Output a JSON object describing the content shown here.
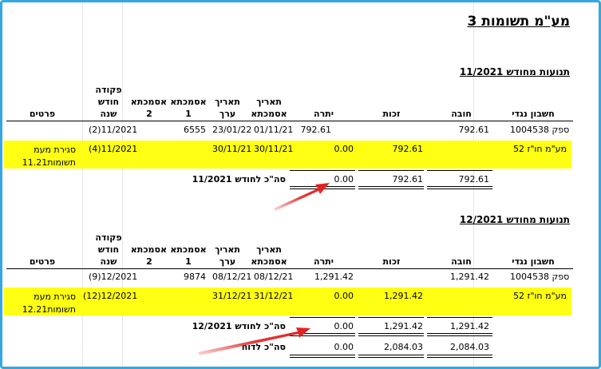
{
  "title": "מע\"מ תשומות  3",
  "columns": {
    "account": "חשבון נגדי",
    "debit": "חובה",
    "credit": "זכות",
    "balance": "יתרה",
    "ref_date": "תאריך אסמכתא",
    "value_date": "תאריך ערך",
    "ref1": "אסמכתא 1",
    "ref2": "אסמכתא 2",
    "command": "פקודה חודש שנה",
    "details": "פרטים"
  },
  "sections": [
    {
      "heading": "תנועות מחודש 11/2021",
      "rows": [
        {
          "account": "ספק 1004538",
          "debit": "792.61",
          "credit": "",
          "balance": "792.61",
          "ref_date": "01/11/21",
          "value_date": "23/01/22",
          "ref1": "6555",
          "ref2": "",
          "command": "(2)11/2021",
          "details": ""
        },
        {
          "account": "מע\"מ חו\"ז 52",
          "debit": "",
          "credit": "792.61",
          "balance": "0.00",
          "ref_date": "30/11/21",
          "value_date": "30/11/21",
          "ref1": "",
          "ref2": "",
          "command": "(4)11/2021",
          "details": "סגירת מעמ תשומות11.21"
        }
      ],
      "total_label": "סה\"כ לחודש 11/2021",
      "total": {
        "debit": "792.61",
        "credit": "792.61",
        "balance": "0.00"
      }
    },
    {
      "heading": "תנועות מחודש 12/2021",
      "rows": [
        {
          "account": "ספק 1004538",
          "debit": "1,291.42",
          "credit": "",
          "balance": "1,291.42",
          "ref_date": "08/12/21",
          "value_date": "08/12/21",
          "ref1": "9874",
          "ref2": "",
          "command": "(9)12/2021",
          "details": ""
        },
        {
          "account": "מע\"מ חו\"ז 52",
          "debit": "",
          "credit": "1,291.42",
          "balance": "0.00",
          "ref_date": "31/12/21",
          "value_date": "31/12/21",
          "ref1": "",
          "ref2": "",
          "command": "(12)12/2021",
          "details": "סגירת מעמ תשומות12.21"
        }
      ],
      "total_label": "סה\"כ לחודש 12/2021",
      "total": {
        "debit": "1,291.42",
        "credit": "1,291.42",
        "balance": "0.00"
      }
    }
  ],
  "report_total": {
    "label": "סה\"כ לדוח",
    "debit": "2,084.03",
    "credit": "2,084.03",
    "balance": "0.00"
  },
  "colors": {
    "highlight": "#ffff14",
    "arrow": "#e02020",
    "frame": "#35a7e0"
  }
}
